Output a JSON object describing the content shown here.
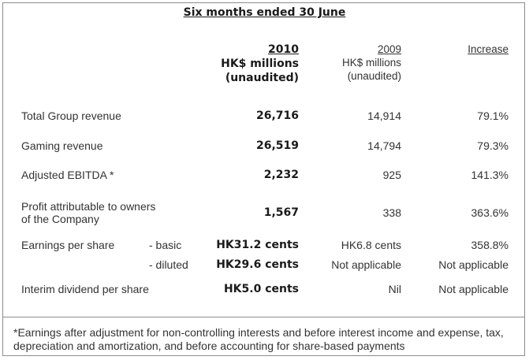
{
  "title": "Six months ended 30 June",
  "headers": {
    "col2010": [
      "2010",
      "HK$ millions",
      "(unaudited)"
    ],
    "col2009": [
      "2009",
      "HK$ millions",
      "(unaudited)"
    ],
    "increase": "Increase"
  },
  "rows": [
    {
      "label": "Total Group revenue",
      "v2010": "26,716",
      "v2009": "14,914",
      "increase": "79.1%"
    },
    {
      "label": "Gaming revenue",
      "v2010": "26,519",
      "v2009": "14,794",
      "increase": "79.3%"
    },
    {
      "label": "Adjusted EBITDA *",
      "v2010": "2,232",
      "v2009": "925",
      "increase": "141.3%"
    },
    {
      "label_lines": [
        "Profit attributable to owners",
        "of the Company"
      ],
      "v2010": "1,567",
      "v2009": "338",
      "increase": "363.6%"
    },
    {
      "label": "Earnings per share",
      "sub": "- basic",
      "v2010": "HK31.2 cents",
      "v2009": "HK6.8 cents",
      "increase": "358.8%"
    },
    {
      "sub": "- diluted",
      "v2010": "HK29.6 cents",
      "v2009": "Not applicable",
      "increase": "Not applicable"
    },
    {
      "label": "Interim dividend per share",
      "v2010": "HK5.0 cents",
      "v2009": "Nil",
      "increase": "Not applicable"
    }
  ],
  "footnote": "*Earnings after adjustment for non-controlling interests and before interest income and expense, tax, depreciation and amortization, and before accounting for share-based payments"
}
